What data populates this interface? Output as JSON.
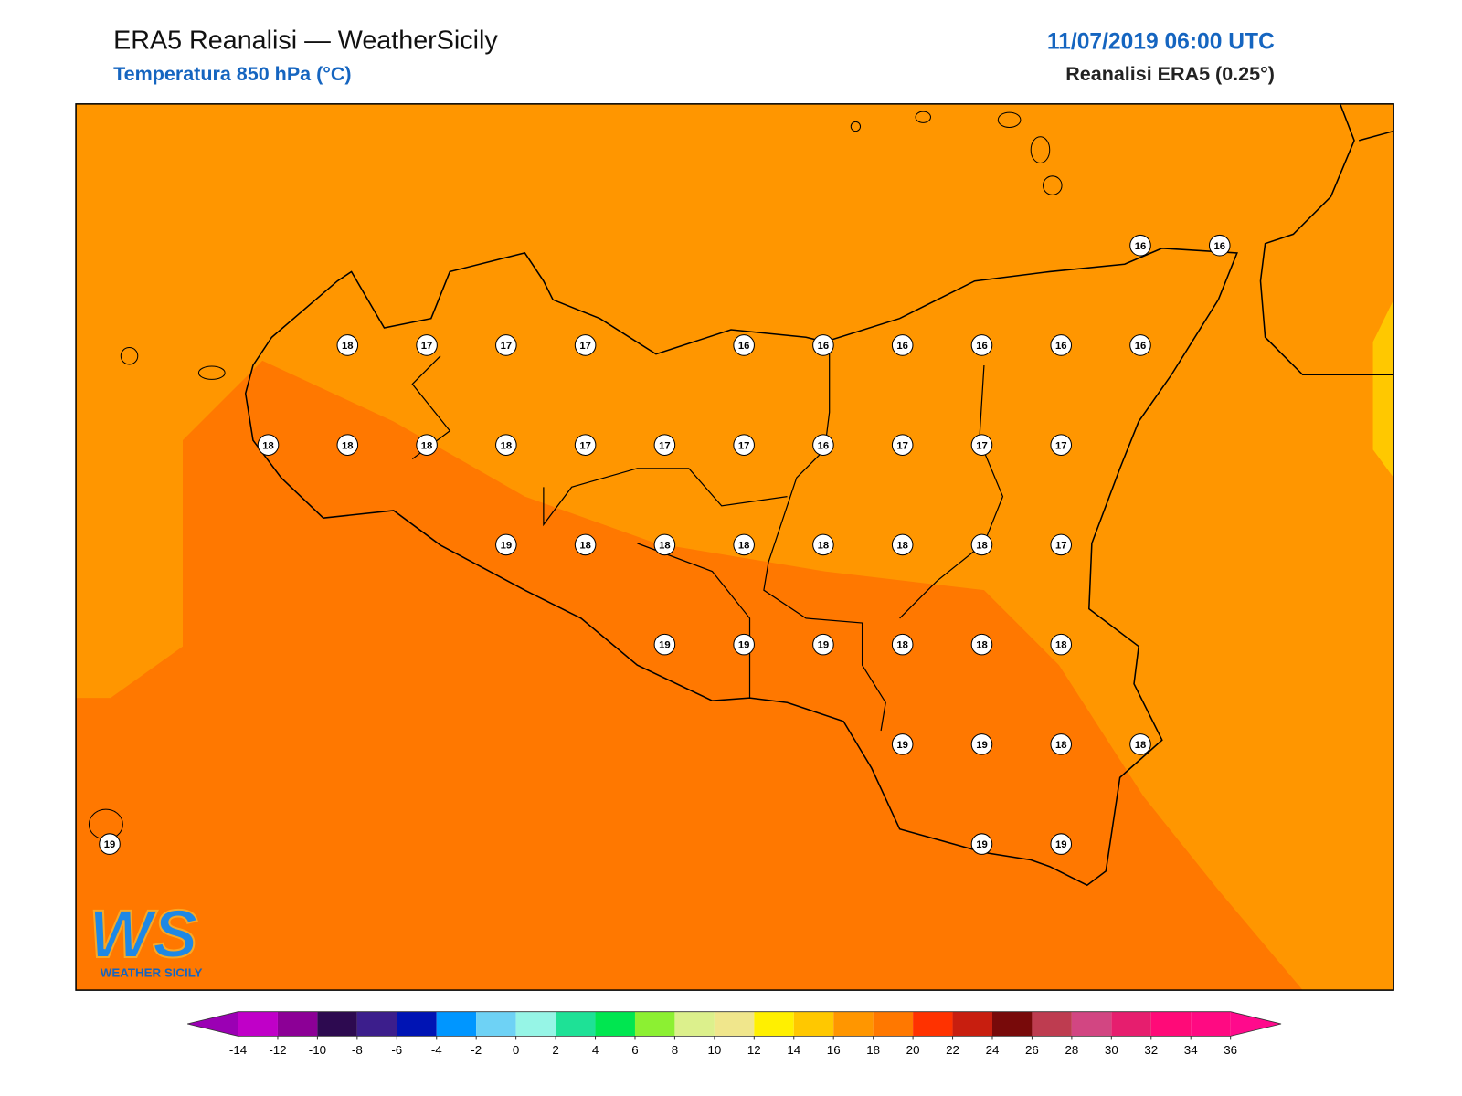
{
  "header": {
    "title": "ERA5 Reanalisi — WeatherSicily",
    "subtitle": "Temperatura 850 hPa (°C)",
    "datetime": "11/07/2019 06:00 UTC",
    "source": "Reanalisi ERA5 (0.25°)"
  },
  "logo": {
    "initials": "WS",
    "name": "WEATHER SICILY"
  },
  "stations": {
    "rows": [
      [
        null,
        null,
        null,
        null,
        null,
        null,
        null,
        null,
        null,
        null,
        null,
        null,
        null,
        16,
        16
      ],
      [
        null,
        null,
        null,
        18,
        17,
        17,
        17,
        null,
        16,
        16,
        16,
        16,
        16,
        16,
        null
      ],
      [
        null,
        null,
        18,
        18,
        18,
        18,
        17,
        17,
        17,
        16,
        17,
        17,
        17,
        null,
        null
      ],
      [
        null,
        null,
        null,
        null,
        null,
        19,
        18,
        18,
        18,
        18,
        18,
        18,
        17,
        null,
        null
      ],
      [
        null,
        null,
        null,
        null,
        null,
        null,
        null,
        19,
        19,
        19,
        18,
        18,
        18,
        null,
        null
      ],
      [
        null,
        null,
        null,
        null,
        null,
        null,
        null,
        null,
        null,
        null,
        19,
        19,
        18,
        18,
        null
      ],
      [
        19,
        null,
        null,
        null,
        null,
        null,
        null,
        null,
        null,
        null,
        null,
        19,
        19,
        null,
        null
      ]
    ]
  },
  "colorbar": {
    "ticks": [
      -14,
      -12,
      -10,
      -8,
      -6,
      -4,
      -2,
      0,
      2,
      4,
      6,
      8,
      10,
      12,
      14,
      16,
      18,
      20,
      22,
      24,
      26,
      28,
      30,
      32,
      34,
      36
    ],
    "colors": [
      "#c000c8",
      "#8c0096",
      "#2d0a50",
      "#3c1e8c",
      "#0014b4",
      "#0096ff",
      "#6ed2f5",
      "#96f5e6",
      "#1ee196",
      "#00e650",
      "#8cf032",
      "#dcf08c",
      "#f0e68c",
      "#fff000",
      "#ffc800",
      "#ff9600",
      "#ff7800",
      "#ff3200",
      "#c81e0f",
      "#780a0a",
      "#be3c50",
      "#d24682",
      "#e61e6e",
      "#ff0a78",
      "#ff0a82"
    ],
    "below_color": "#9b00b4",
    "above_color": "#ff0a8c"
  }
}
